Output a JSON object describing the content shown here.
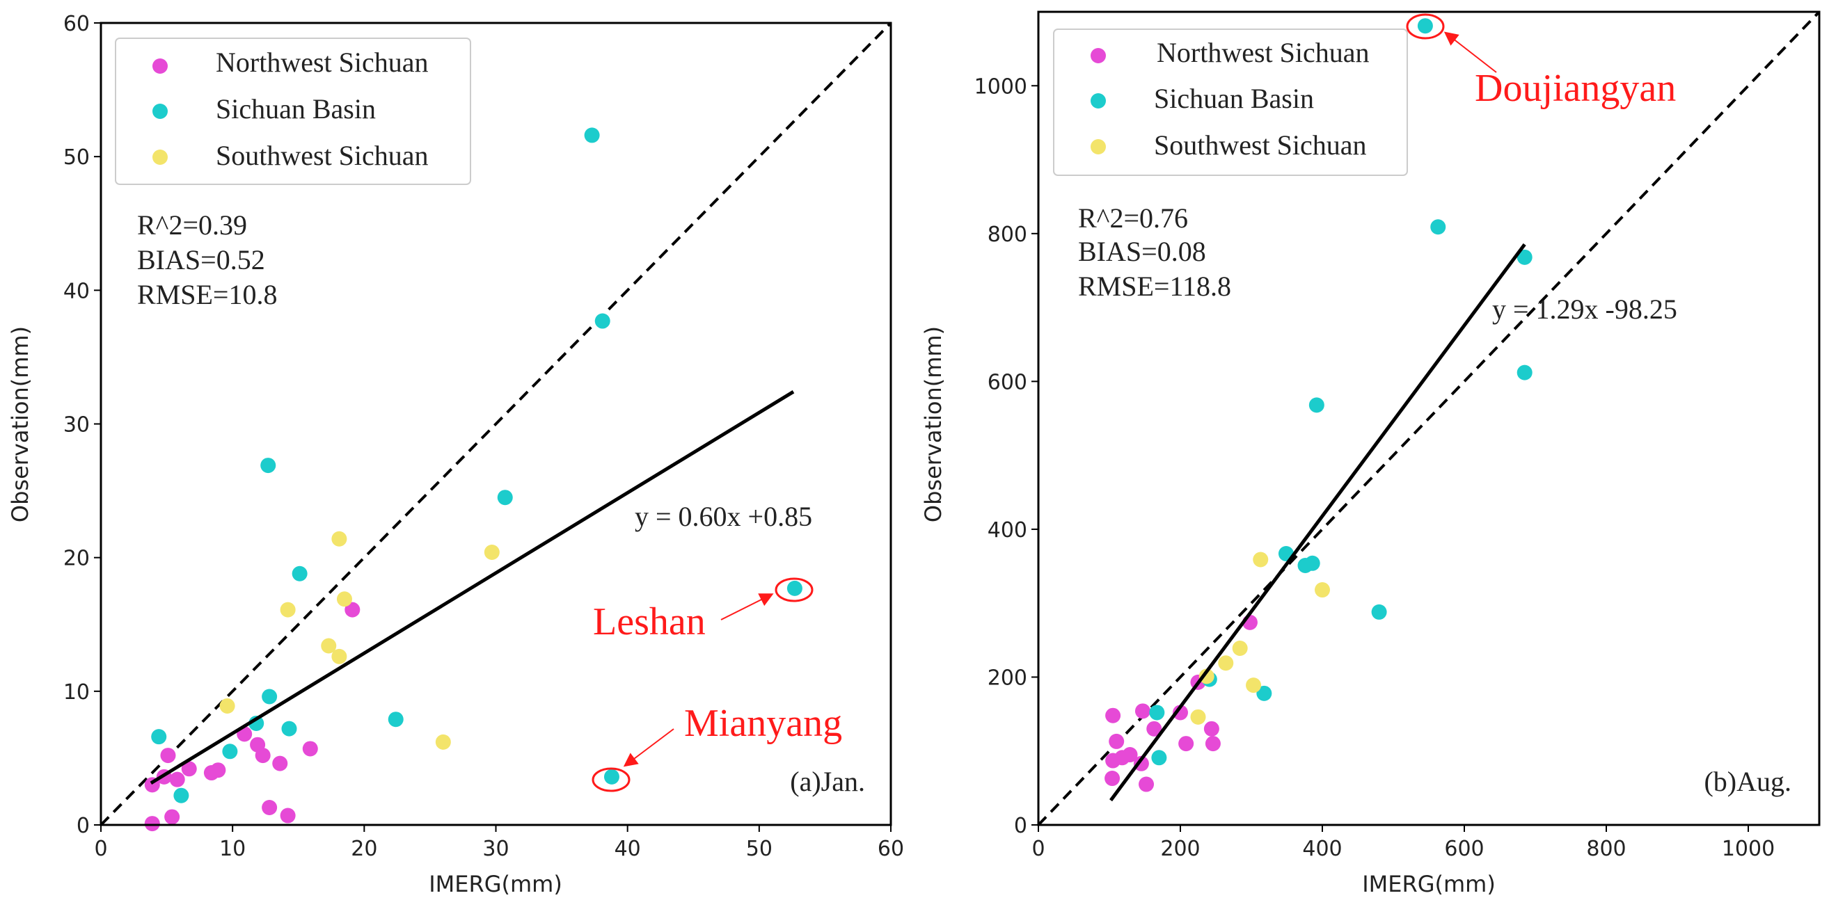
{
  "chart_data": [
    {
      "type": "scatter",
      "panel_label": "(a)Jan.",
      "xlabel": "IMERG(mm)",
      "ylabel": "Observation(mm)",
      "xlim": [
        0,
        60
      ],
      "ylim": [
        0,
        60
      ],
      "xticks": [
        "0",
        "10",
        "20",
        "30",
        "40",
        "50",
        "60"
      ],
      "yticks": [
        "0",
        "10",
        "20",
        "30",
        "40",
        "50",
        "60"
      ],
      "grid": false,
      "legend_position": "top-left",
      "stats": [
        "R^2=0.39",
        "BIAS=0.52",
        "RMSE=10.8"
      ],
      "fit": {
        "label": "y = 0.60x +0.85",
        "slope": 0.6,
        "intercept": 0.85,
        "x_range": [
          3.8,
          52.6
        ]
      },
      "reference_line": "1:1",
      "series": [
        {
          "name": "Northwest Sichuan",
          "color": "#e64ad6",
          "points": [
            [
              3.9,
              3.0
            ],
            [
              3.9,
              0.1
            ],
            [
              5.1,
              5.2
            ],
            [
              5.4,
              0.6
            ],
            [
              5.8,
              3.4
            ],
            [
              6.7,
              4.2
            ],
            [
              8.4,
              3.9
            ],
            [
              8.9,
              4.1
            ],
            [
              10.9,
              6.8
            ],
            [
              11.9,
              6.0
            ],
            [
              12.3,
              5.2
            ],
            [
              12.8,
              1.3
            ],
            [
              13.6,
              4.6
            ],
            [
              14.2,
              0.7
            ],
            [
              15.9,
              5.7
            ],
            [
              19.1,
              16.1
            ],
            [
              4.8,
              3.6
            ]
          ]
        },
        {
          "name": "Sichuan Basin",
          "color": "#1ccccc",
          "points": [
            [
              4.4,
              6.6
            ],
            [
              6.1,
              2.2
            ],
            [
              9.8,
              5.5
            ],
            [
              11.8,
              7.6
            ],
            [
              12.7,
              26.9
            ],
            [
              12.8,
              9.6
            ],
            [
              14.3,
              7.2
            ],
            [
              15.1,
              18.8
            ],
            [
              22.4,
              7.9
            ],
            [
              30.7,
              24.5
            ],
            [
              37.3,
              51.6
            ],
            [
              38.1,
              37.7
            ],
            [
              38.8,
              3.6
            ],
            [
              52.7,
              17.7
            ]
          ]
        },
        {
          "name": "Southwest Sichuan",
          "color": "#f3e46a",
          "points": [
            [
              9.6,
              8.9
            ],
            [
              14.2,
              16.1
            ],
            [
              17.3,
              13.4
            ],
            [
              18.1,
              21.4
            ],
            [
              18.1,
              12.6
            ],
            [
              18.5,
              16.9
            ],
            [
              26.0,
              6.2
            ],
            [
              29.7,
              20.4
            ]
          ]
        }
      ],
      "annotations": [
        {
          "text": "Leshan",
          "point": [
            52.7,
            17.7
          ]
        },
        {
          "text": "Mianyang",
          "point": [
            38.8,
            3.6
          ]
        }
      ]
    },
    {
      "type": "scatter",
      "panel_label": "(b)Aug.",
      "xlabel": "IMERG(mm)",
      "ylabel": "Observation(mm)",
      "xlim": [
        0,
        1100
      ],
      "ylim": [
        0,
        1100
      ],
      "xticks": [
        "0",
        "200",
        "400",
        "600",
        "800",
        "1000"
      ],
      "yticks": [
        "0",
        "200",
        "400",
        "600",
        "800",
        "1000"
      ],
      "grid": false,
      "legend_position": "top-left",
      "stats": [
        "R^2=0.76",
        "BIAS=0.08",
        "RMSE=118.8"
      ],
      "fit": {
        "label": "y = 1.29x -98.25",
        "slope": 1.29,
        "intercept": -98.25,
        "x_range": [
          102,
          685
        ]
      },
      "reference_line": "1:1",
      "series": [
        {
          "name": "Northwest Sichuan",
          "color": "#e64ad6",
          "points": [
            [
              105,
              148
            ],
            [
              104,
              63
            ],
            [
              110,
              113
            ],
            [
              105,
              87
            ],
            [
              118,
              91
            ],
            [
              129,
              95
            ],
            [
              147,
              154
            ],
            [
              145,
              83
            ],
            [
              152,
              55
            ],
            [
              163,
              130
            ],
            [
              200,
              152
            ],
            [
              208,
              110
            ],
            [
              225,
              193
            ],
            [
              244,
              130
            ],
            [
              246,
              110
            ],
            [
              298,
              274
            ]
          ]
        },
        {
          "name": "Sichuan Basin",
          "color": "#1ccccc",
          "points": [
            [
              167,
              152
            ],
            [
              170,
              91
            ],
            [
              318,
              178
            ],
            [
              241,
              197
            ],
            [
              349,
              367
            ],
            [
              376,
              351
            ],
            [
              386,
              354
            ],
            [
              392,
              568
            ],
            [
              480,
              288
            ],
            [
              545,
              1081
            ],
            [
              563,
              809
            ],
            [
              685,
              768
            ],
            [
              685,
              612
            ]
          ]
        },
        {
          "name": "Southwest Sichuan",
          "color": "#f3e46a",
          "points": [
            [
              225,
              146
            ],
            [
              237,
              201
            ],
            [
              264,
              219
            ],
            [
              284,
              239
            ],
            [
              303,
              189
            ],
            [
              313,
              359
            ],
            [
              400,
              318
            ]
          ]
        }
      ],
      "annotations": [
        {
          "text": "Doujiangyan",
          "point": [
            545,
            1081
          ]
        }
      ]
    }
  ]
}
